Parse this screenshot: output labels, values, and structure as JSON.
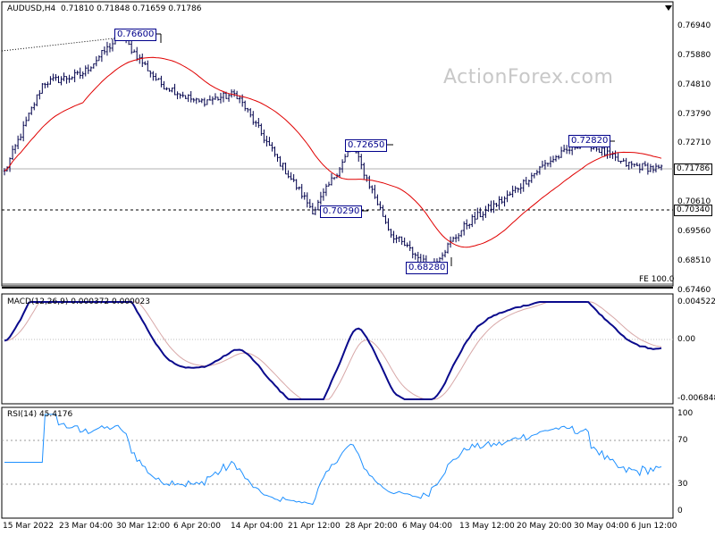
{
  "main_header": {
    "symbol": "AUDUSD,H4",
    "ohlc": "0.71810 0.71848 0.71659 0.71786"
  },
  "watermark": "ActionForex.com",
  "price_axis_ticks": [
    "0.76940",
    "0.75880",
    "0.74810",
    "0.73790",
    "0.72710",
    "0.71650",
    "0.70610",
    "0.69560",
    "0.68510",
    "0.67460"
  ],
  "price_tags": {
    "current": "0.71786",
    "level": "0.70340"
  },
  "fe_label": "FE 100.0",
  "annotations": [
    {
      "text": "0.76600"
    },
    {
      "text": "0.72650"
    },
    {
      "text": "0.70290"
    },
    {
      "text": "0.68280"
    },
    {
      "text": "0.72820"
    }
  ],
  "macd_header": "MACD(12,26,9) 0.000372 0.000023",
  "macd_ticks": [
    "0.004522",
    "0.00",
    "-0.006848"
  ],
  "rsi_header": "RSI(14) 45.4176",
  "rsi_ticks": [
    "100",
    "70",
    "30",
    "0"
  ],
  "date_labels": [
    "15 Mar 2022",
    "23 Mar 04:00",
    "30 Mar 12:00",
    "6 Apr 20:00",
    "14 Apr 04:00",
    "21 Apr 12:00",
    "28 Apr 20:00",
    "6 May 04:00",
    "13 May 12:00",
    "20 May 20:00",
    "30 May 04:00",
    "6 Jun 12:00"
  ],
  "colors": {
    "bars": "#00004b",
    "ma": "#e00000",
    "macd": "#0a0a8c",
    "signal": "#d8a8a8",
    "rsi": "#1e90ff",
    "box": "#00008b"
  },
  "chart_data": {
    "type": "line",
    "title": "AUDUSD,H4",
    "price_range": [
      0.6746,
      0.7694
    ],
    "price_keypoints": [
      {
        "x": "15 Mar 2022",
        "y": 0.717
      },
      {
        "x": "23 Mar 04:00",
        "y": 0.749
      },
      {
        "x": "30 Mar 12:00",
        "y": 0.752
      },
      {
        "x": "1 Apr",
        "y": 0.766
      },
      {
        "x": "6 Apr 20:00",
        "y": 0.749
      },
      {
        "x": "14 Apr 04:00",
        "y": 0.742
      },
      {
        "x": "18 Apr",
        "y": 0.745
      },
      {
        "x": "21 Apr 12:00",
        "y": 0.723
      },
      {
        "x": "26 Apr",
        "y": 0.7029
      },
      {
        "x": "28 Apr 20:00",
        "y": 0.7265
      },
      {
        "x": "6 May 04:00",
        "y": 0.695
      },
      {
        "x": "12 May",
        "y": 0.6828
      },
      {
        "x": "13 May 12:00",
        "y": 0.699
      },
      {
        "x": "20 May 20:00",
        "y": 0.708
      },
      {
        "x": "30 May 04:00",
        "y": 0.72
      },
      {
        "x": "3 Jun",
        "y": 0.7282
      },
      {
        "x": "6 Jun 12:00",
        "y": 0.72
      },
      {
        "x": "8 Jun",
        "y": 0.7179
      }
    ],
    "horizontal_lines": [
      0.71786,
      0.7034
    ],
    "macd_range": [
      -0.006848,
      0.004522
    ],
    "rsi_range": [
      0,
      100
    ],
    "rsi_levels": [
      30,
      70
    ],
    "rsi_last": 45.4176
  }
}
